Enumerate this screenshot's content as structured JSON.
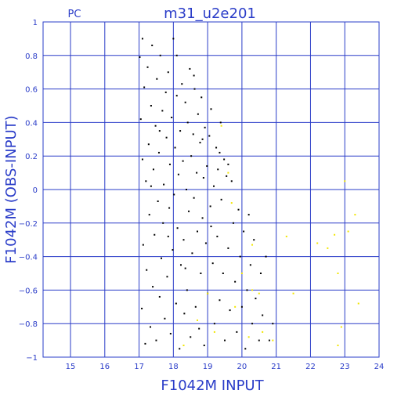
{
  "chart_data": {
    "type": "scatter",
    "title": "m31_u2e201",
    "corner_label": "PC",
    "xlabel": "F1042M INPUT",
    "ylabel": "F1042M (OBS-INPUT)",
    "xlim": [
      14.2,
      24
    ],
    "ylim": [
      -1,
      1
    ],
    "x_ticks": [
      15,
      16,
      17,
      18,
      19,
      20,
      21,
      22,
      23,
      24
    ],
    "y_ticks": [
      -1,
      -0.8,
      -0.6,
      -0.4,
      -0.2,
      0,
      0.2,
      0.4,
      0.6,
      0.8,
      1
    ],
    "x_tick_labels": [
      "15",
      "16",
      "17",
      "18",
      "19",
      "20",
      "21",
      "22",
      "23",
      "24"
    ],
    "y_tick_labels": [
      "−1",
      "−0.8",
      "−0.6",
      "−0.4",
      "−0.2",
      "0",
      "0.2",
      "0.4",
      "0.6",
      "0.8",
      "1"
    ],
    "grid": true,
    "colors": {
      "axis": "#2a3cc8",
      "grid": "#2a3cc8",
      "series_black": "#000000",
      "series_yellow": "#f2e600"
    },
    "series": [
      {
        "color_key": "series_black",
        "points": [
          [
            17.02,
            0.79
          ],
          [
            17.05,
            0.42
          ],
          [
            17.08,
            -0.71
          ],
          [
            17.1,
            0.18
          ],
          [
            17.12,
            -0.33
          ],
          [
            17.15,
            0.61
          ],
          [
            17.18,
            -0.92
          ],
          [
            17.2,
            0.05
          ],
          [
            17.22,
            -0.48
          ],
          [
            17.25,
            0.73
          ],
          [
            17.28,
            0.27
          ],
          [
            17.3,
            -0.15
          ],
          [
            17.33,
            -0.82
          ],
          [
            17.35,
            0.5
          ],
          [
            17.38,
            0.86
          ],
          [
            17.4,
            -0.58
          ],
          [
            17.42,
            0.12
          ],
          [
            17.45,
            -0.27
          ],
          [
            17.48,
            0.38
          ],
          [
            17.5,
            -0.9
          ],
          [
            17.52,
            0.66
          ],
          [
            17.55,
            -0.07
          ],
          [
            17.58,
            0.22
          ],
          [
            17.6,
            -0.64
          ],
          [
            17.62,
            0.8
          ],
          [
            17.65,
            -0.41
          ],
          [
            17.68,
            0.47
          ],
          [
            17.7,
            -0.2
          ],
          [
            17.72,
            0.03
          ],
          [
            17.75,
            -0.77
          ],
          [
            17.78,
            0.58
          ],
          [
            17.8,
            0.31
          ],
          [
            17.82,
            -0.52
          ],
          [
            17.85,
            0.7
          ],
          [
            17.88,
            -0.11
          ],
          [
            17.9,
            0.15
          ],
          [
            17.92,
            -0.86
          ],
          [
            17.95,
            0.43
          ],
          [
            17.98,
            -0.36
          ],
          [
            18.0,
            0.9
          ],
          [
            18.02,
            -0.03
          ],
          [
            18.05,
            0.25
          ],
          [
            18.08,
            -0.68
          ],
          [
            18.1,
            0.56
          ],
          [
            18.12,
            -0.23
          ],
          [
            18.15,
            0.09
          ],
          [
            18.18,
            -0.95
          ],
          [
            18.2,
            0.35
          ],
          [
            18.22,
            -0.45
          ],
          [
            18.25,
            0.63
          ],
          [
            18.28,
            0.17
          ],
          [
            18.3,
            -0.3
          ],
          [
            18.32,
            -0.74
          ],
          [
            18.35,
            0.52
          ],
          [
            18.38,
            0.0
          ],
          [
            18.4,
            -0.6
          ],
          [
            18.42,
            0.4
          ],
          [
            18.45,
            -0.13
          ],
          [
            18.48,
            0.72
          ],
          [
            18.5,
            -0.88
          ],
          [
            18.52,
            0.2
          ],
          [
            18.55,
            -0.38
          ],
          [
            18.58,
            0.33
          ],
          [
            18.6,
            -0.05
          ],
          [
            18.62,
            0.6
          ],
          [
            18.65,
            -0.7
          ],
          [
            18.68,
            0.1
          ],
          [
            18.7,
            -0.25
          ],
          [
            18.72,
            0.45
          ],
          [
            18.75,
            -0.83
          ],
          [
            18.78,
            0.28
          ],
          [
            18.8,
            -0.5
          ],
          [
            18.82,
            0.55
          ],
          [
            18.85,
            -0.17
          ],
          [
            18.88,
            0.07
          ],
          [
            18.9,
            -0.93
          ],
          [
            18.92,
            0.37
          ],
          [
            18.95,
            -0.32
          ],
          [
            18.98,
            0.14
          ],
          [
            19.0,
            -0.62
          ],
          [
            19.05,
            0.32
          ],
          [
            19.08,
            -0.1
          ],
          [
            19.1,
            0.48
          ],
          [
            19.15,
            -0.44
          ],
          [
            19.18,
            0.02
          ],
          [
            19.2,
            -0.8
          ],
          [
            19.25,
            0.25
          ],
          [
            19.28,
            -0.28
          ],
          [
            19.3,
            0.12
          ],
          [
            19.35,
            -0.66
          ],
          [
            19.38,
            0.4
          ],
          [
            19.4,
            -0.06
          ],
          [
            19.45,
            -0.5
          ],
          [
            19.48,
            0.18
          ],
          [
            19.5,
            -0.9
          ],
          [
            19.55,
            0.08
          ],
          [
            19.6,
            -0.35
          ],
          [
            19.65,
            -0.72
          ],
          [
            19.7,
            0.05
          ],
          [
            19.75,
            -0.2
          ],
          [
            19.8,
            -0.55
          ],
          [
            19.85,
            -0.85
          ],
          [
            19.9,
            -0.12
          ],
          [
            19.95,
            -0.4
          ],
          [
            20.0,
            -0.7
          ],
          [
            20.05,
            -0.25
          ],
          [
            20.1,
            -0.95
          ],
          [
            20.15,
            -0.6
          ],
          [
            20.2,
            -0.15
          ],
          [
            20.25,
            -0.45
          ],
          [
            20.3,
            -0.8
          ],
          [
            20.35,
            -0.3
          ],
          [
            20.4,
            -0.65
          ],
          [
            20.5,
            -0.9
          ],
          [
            20.55,
            -0.5
          ],
          [
            20.6,
            -0.75
          ],
          [
            20.7,
            -0.4
          ],
          [
            20.8,
            -0.9
          ],
          [
            20.9,
            -0.8
          ],
          [
            17.1,
            0.9
          ],
          [
            17.35,
            0.02
          ],
          [
            17.6,
            0.35
          ],
          [
            17.85,
            -0.28
          ],
          [
            18.1,
            0.8
          ],
          [
            18.35,
            -0.47
          ],
          [
            18.6,
            0.68
          ],
          [
            18.85,
            0.3
          ],
          [
            19.1,
            -0.22
          ],
          [
            19.35,
            0.22
          ],
          [
            19.6,
            0.15
          ]
        ]
      },
      {
        "color_key": "series_yellow",
        "points": [
          [
            19.4,
            0.38
          ],
          [
            19.6,
            0.1
          ],
          [
            19.7,
            -0.08
          ],
          [
            20.3,
            -0.33
          ],
          [
            20.0,
            -0.5
          ],
          [
            20.3,
            -0.6
          ],
          [
            20.5,
            -0.62
          ],
          [
            20.6,
            -0.85
          ],
          [
            20.9,
            -0.9
          ],
          [
            21.5,
            -0.62
          ],
          [
            21.3,
            -0.28
          ],
          [
            22.2,
            -0.32
          ],
          [
            22.5,
            -0.35
          ],
          [
            22.7,
            -0.27
          ],
          [
            22.8,
            -0.5
          ],
          [
            22.9,
            -0.82
          ],
          [
            23.0,
            0.05
          ],
          [
            23.1,
            -0.25
          ],
          [
            23.3,
            -0.15
          ],
          [
            23.4,
            -0.68
          ],
          [
            22.8,
            -0.93
          ],
          [
            19.0,
            -0.62
          ],
          [
            19.8,
            -0.7
          ],
          [
            20.2,
            -0.88
          ],
          [
            18.3,
            -0.93
          ],
          [
            18.7,
            -0.78
          ],
          [
            19.2,
            -0.85
          ]
        ]
      }
    ]
  }
}
